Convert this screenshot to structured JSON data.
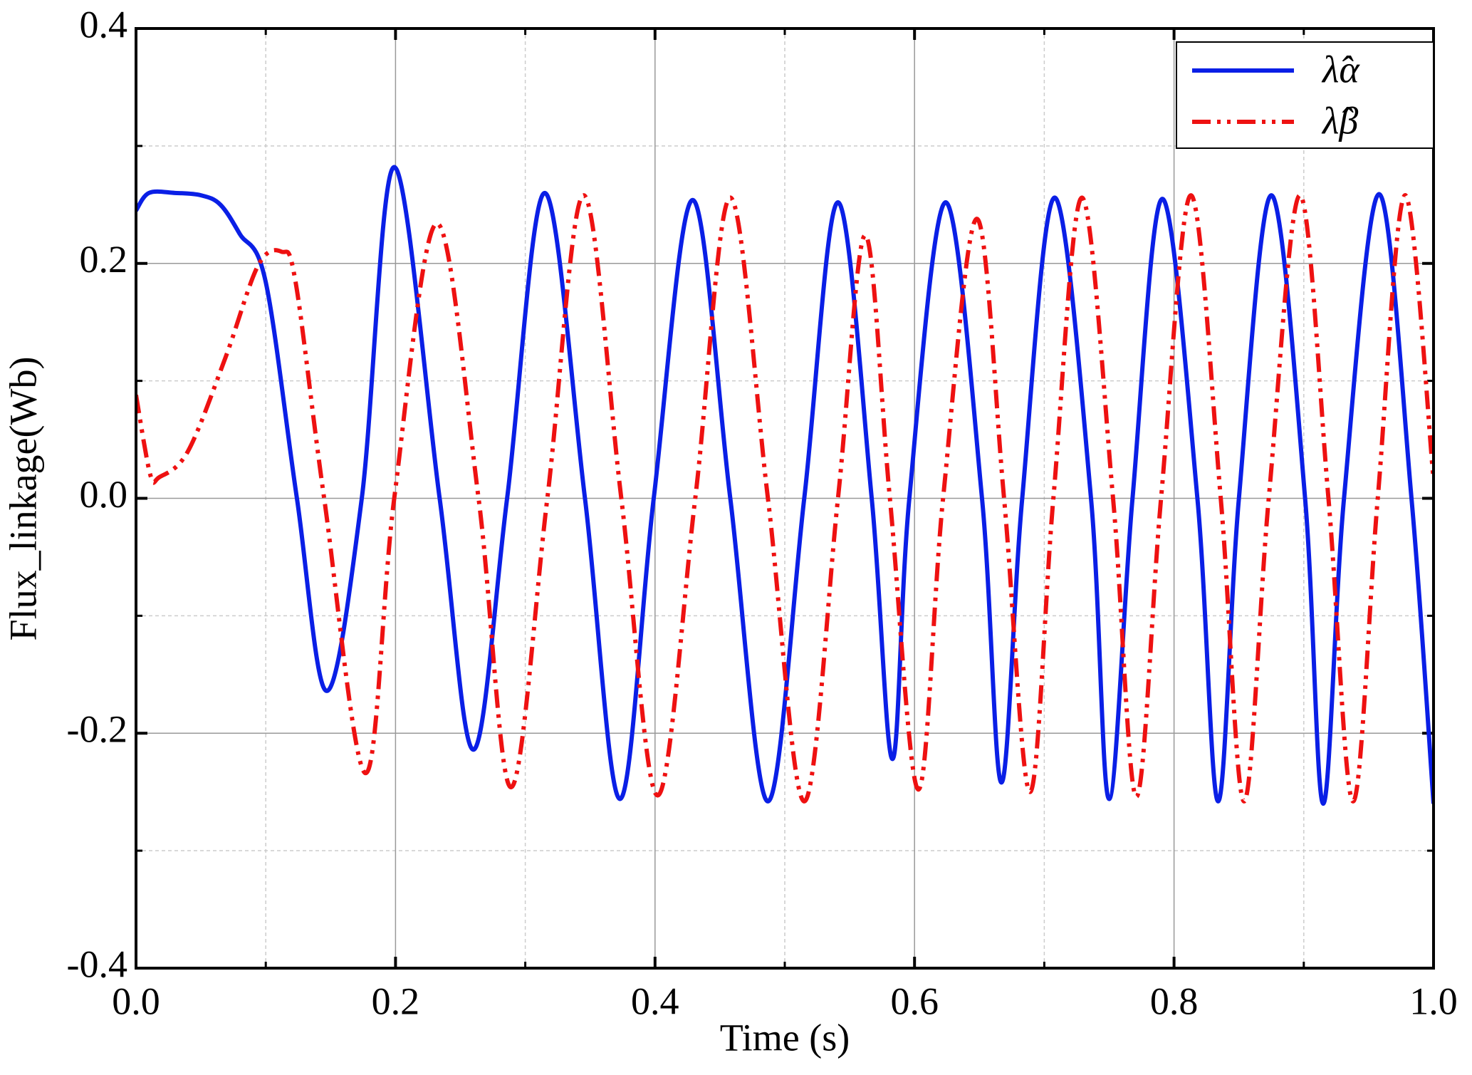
{
  "chart_data": {
    "type": "line",
    "x_label": "Time (s)",
    "y_label": "Flux_linkage(Wb)",
    "xlim": [
      0,
      1
    ],
    "ylim": [
      -0.4,
      0.4
    ],
    "xticks": [
      {
        "value": 0,
        "label": "0.0"
      },
      0.2,
      0.4,
      0.6,
      0.8,
      {
        "value": 1,
        "label": "1.0"
      }
    ],
    "yticks": [
      -0.4,
      -0.2,
      {
        "value": 0,
        "label": "0.0"
      },
      0.2,
      0.4
    ],
    "xminor": [
      0.1,
      0.3,
      0.5,
      0.7,
      0.9
    ],
    "yminor": [
      -0.3,
      -0.1,
      0.1,
      0.3
    ],
    "grid": true,
    "legend": "top-right",
    "series": [
      {
        "name": "λ̂α",
        "color": "#0a1fe6",
        "dash": "solid",
        "x": [
          0,
          0.01,
          0.03,
          0.05,
          0.065,
          0.08,
          0.1,
          0.124,
          0.147,
          0.174,
          0.199,
          0.234,
          0.26,
          0.286,
          0.315,
          0.346,
          0.373,
          0.399,
          0.429,
          0.458,
          0.487,
          0.515,
          0.541,
          0.567,
          0.583,
          0.596,
          0.624,
          0.652,
          0.667,
          0.683,
          0.708,
          0.736,
          0.75,
          0.768,
          0.791,
          0.818,
          0.834,
          0.85,
          0.875,
          0.901,
          0.915,
          0.931,
          0.958,
          0.983,
          1.0
        ],
        "values": [
          0.245,
          0.26,
          0.26,
          0.258,
          0.25,
          0.225,
          0.184,
          0,
          -0.164,
          0,
          0.282,
          0,
          -0.214,
          0,
          0.26,
          0,
          -0.256,
          0,
          0.254,
          0,
          -0.258,
          0,
          0.252,
          0,
          -0.222,
          0,
          0.252,
          0,
          -0.242,
          0,
          0.256,
          0,
          -0.256,
          0,
          0.255,
          0,
          -0.258,
          0,
          0.258,
          0,
          -0.26,
          0,
          0.259,
          0,
          -0.26
        ]
      },
      {
        "name": "λ̂β",
        "color": "#ee1111",
        "dash": "dash-dot-dot",
        "x": [
          0,
          0.011,
          0.018,
          0.04,
          0.069,
          0.094,
          0.112,
          0.123,
          0.145,
          0.177,
          0.199,
          0.232,
          0.264,
          0.289,
          0.317,
          0.345,
          0.374,
          0.402,
          0.431,
          0.458,
          0.487,
          0.515,
          0.541,
          0.562,
          0.581,
          0.603,
          0.622,
          0.648,
          0.669,
          0.689,
          0.707,
          0.729,
          0.753,
          0.771,
          0.79,
          0.813,
          0.836,
          0.854,
          0.873,
          0.897,
          0.919,
          0.938,
          0.957,
          0.978,
          1.0
        ],
        "values": [
          0.088,
          0.02,
          0.018,
          0.04,
          0.12,
          0.198,
          0.21,
          0.184,
          0,
          -0.234,
          0,
          0.234,
          0,
          -0.246,
          0,
          0.258,
          0,
          -0.253,
          0,
          0.256,
          0,
          -0.258,
          0,
          0.224,
          0,
          -0.248,
          0,
          0.238,
          0,
          -0.25,
          0,
          0.256,
          0,
          -0.254,
          0,
          0.258,
          0,
          -0.258,
          0,
          0.258,
          0,
          -0.258,
          0,
          0.258,
          0.016
        ]
      }
    ]
  }
}
